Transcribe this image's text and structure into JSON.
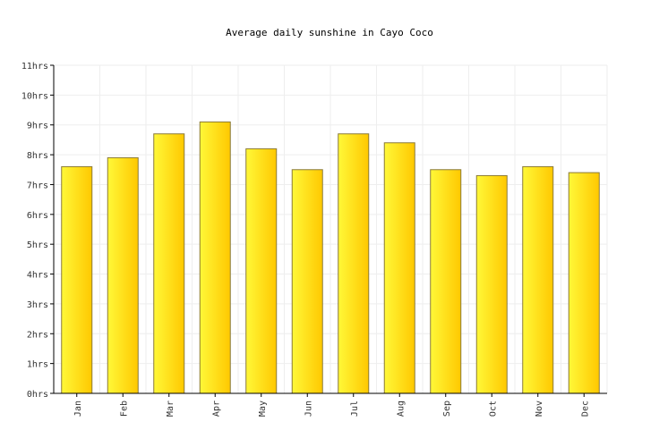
{
  "chart_data": {
    "type": "bar",
    "title": "Average daily sunshine in Cayo Coco",
    "xlabel": "",
    "ylabel": "",
    "categories": [
      "Jan",
      "Feb",
      "Mar",
      "Apr",
      "May",
      "Jun",
      "Jul",
      "Aug",
      "Sep",
      "Oct",
      "Nov",
      "Dec"
    ],
    "values": [
      7.6,
      7.9,
      8.7,
      9.1,
      8.2,
      7.5,
      8.7,
      8.4,
      7.5,
      7.3,
      7.6,
      7.4
    ],
    "ylim": [
      0,
      11
    ],
    "yticks": [
      "0hrs",
      "1hrs",
      "2hrs",
      "3hrs",
      "4hrs",
      "5hrs",
      "6hrs",
      "7hrs",
      "8hrs",
      "9hrs",
      "10hrs",
      "11hrs"
    ],
    "grid": true,
    "legend": "none",
    "colors": {
      "bar_light": "#fff838",
      "bar_dark": "#ffc800",
      "bar_stroke": "#8a7a38",
      "grid": "#eeeeee",
      "axis": "#000000"
    }
  }
}
